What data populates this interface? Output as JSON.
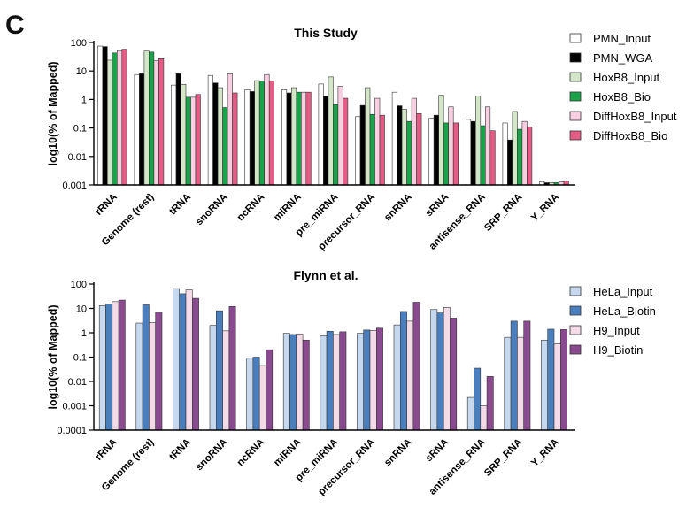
{
  "panel_label": "C",
  "chart_data": [
    {
      "type": "bar",
      "title": "This Study",
      "ylabel": "log10(% of Mapped)",
      "xlabel": "",
      "yscale": "log",
      "ylim": [
        0.001,
        100
      ],
      "yticks": [
        "100",
        "10",
        "1",
        "0.1",
        "0.01",
        "0.001"
      ],
      "legend_position": "right",
      "categories": [
        "rRNA",
        "Genome (rest)",
        "tRNA",
        "snoRNA",
        "ncRNA",
        "miRNA",
        "pre_miRNA",
        "precursor_RNA",
        "snRNA",
        "sRNA",
        "antisense_RNA",
        "SRP_RNA",
        "Y_RNA"
      ],
      "series": [
        {
          "name": "PMN_Input",
          "color": "#ffffff",
          "values": [
            75,
            7.5,
            3.2,
            7,
            2.2,
            2.2,
            3.5,
            0.25,
            1.8,
            0.22,
            0.2,
            0.15,
            0.0013
          ]
        },
        {
          "name": "PMN_WGA",
          "color": "#000000",
          "values": [
            72,
            8,
            8,
            3.8,
            1.9,
            1.7,
            1.3,
            0.62,
            0.6,
            0.28,
            0.17,
            0.038,
            0.0012
          ]
        },
        {
          "name": "HoxB8_Input",
          "color": "#d3e7c8",
          "values": [
            24,
            50,
            3.4,
            2.6,
            4.6,
            2.6,
            6.2,
            2.6,
            0.45,
            1.4,
            1.3,
            0.38,
            0.0012
          ]
        },
        {
          "name": "HoxB8_Bio",
          "color": "#1aa34a",
          "values": [
            43,
            46,
            1.2,
            0.52,
            4.4,
            1.8,
            0.66,
            0.3,
            0.17,
            0.15,
            0.12,
            0.09,
            0.0012
          ]
        },
        {
          "name": "DiffHoxB8_Input",
          "color": "#f7cfe0",
          "values": [
            52,
            23,
            1.2,
            8,
            7.5,
            1.8,
            2.9,
            1.1,
            1.1,
            0.55,
            0.55,
            0.17,
            0.0013
          ]
        },
        {
          "name": "DiffHoxB8_Bio",
          "color": "#e45b85",
          "values": [
            58,
            27,
            1.5,
            1.7,
            4.5,
            1.8,
            1.1,
            0.28,
            0.32,
            0.15,
            0.08,
            0.11,
            0.0014
          ]
        }
      ]
    },
    {
      "type": "bar",
      "title": "Flynn et al.",
      "ylabel": "log10(% of Mapped)",
      "xlabel": "",
      "yscale": "log",
      "ylim": [
        0.0001,
        100
      ],
      "yticks": [
        "100",
        "10",
        "1",
        "0.1",
        "0.01",
        "0.001",
        "0.0001"
      ],
      "legend_position": "right",
      "categories": [
        "rRNA",
        "Genome (rest)",
        "tRNA",
        "snoRNA",
        "ncRNA",
        "miRNA",
        "pre_miRNA",
        "precursor_RNA",
        "snRNA",
        "sRNA",
        "antisense_RNA",
        "SRP_RNA",
        "Y_RNA"
      ],
      "series": [
        {
          "name": "HeLa_Input",
          "color": "#c6d8ee",
          "values": [
            13,
            2.5,
            65,
            2,
            0.09,
            0.95,
            0.75,
            0.95,
            2.1,
            9,
            0.0022,
            0.65,
            0.5
          ]
        },
        {
          "name": "HeLa_Biotin",
          "color": "#4a7fbf",
          "values": [
            15,
            14,
            40,
            8,
            0.1,
            0.85,
            1.15,
            1.3,
            7.5,
            6.5,
            0.035,
            3,
            1.4
          ]
        },
        {
          "name": "H9_Input",
          "color": "#f3dbe8",
          "values": [
            19,
            2.6,
            58,
            1.2,
            0.045,
            0.9,
            0.85,
            1.25,
            3,
            11,
            0.001,
            0.65,
            0.35
          ]
        },
        {
          "name": "H9_Biotin",
          "color": "#8a4a8f",
          "values": [
            22,
            7,
            26,
            12,
            0.2,
            0.5,
            1.1,
            1.55,
            18,
            4,
            0.016,
            3,
            1.35
          ]
        }
      ]
    }
  ]
}
